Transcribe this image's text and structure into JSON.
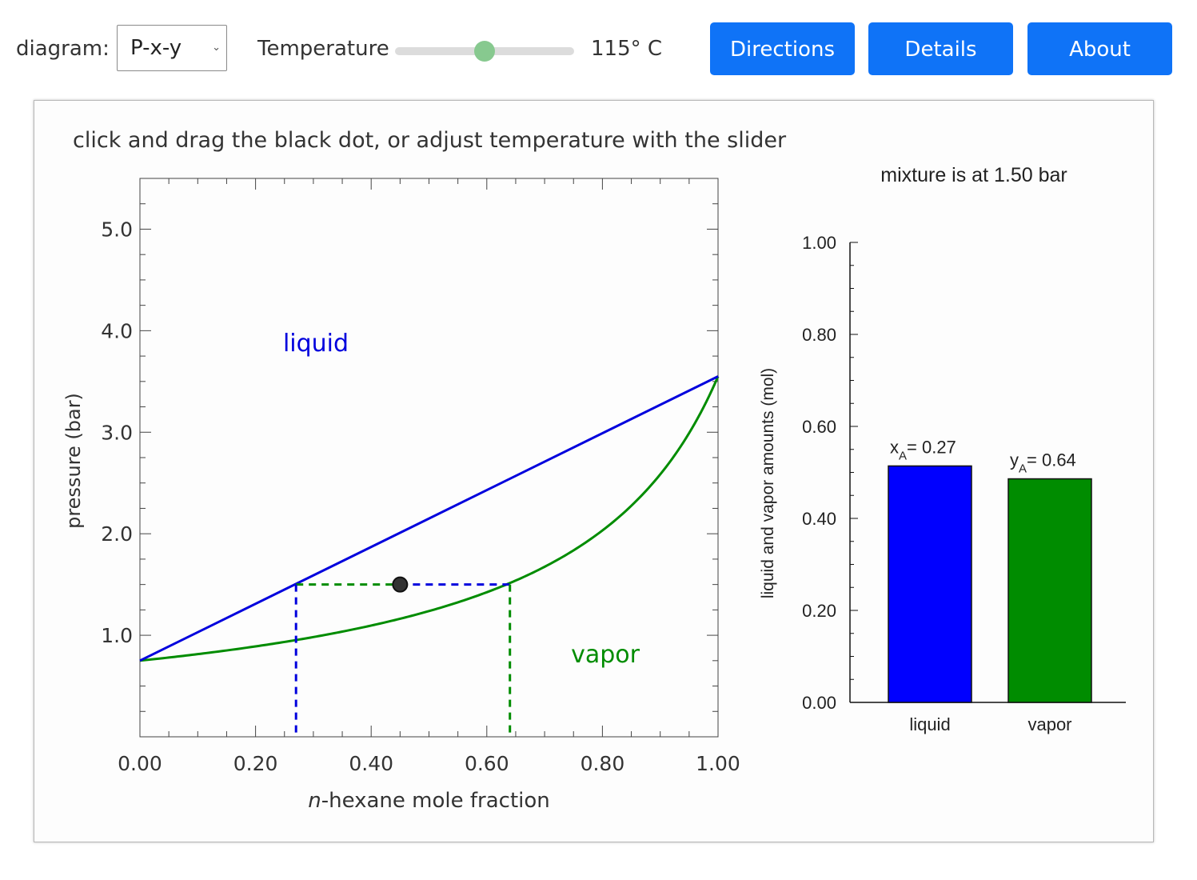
{
  "controls": {
    "diagram_label": "diagram:",
    "diagram_value": "P-x-y",
    "temperature_label": "Temperature",
    "temperature_value": "115° C",
    "temperature_slider_fraction": 0.5,
    "buttons": {
      "directions": "Directions",
      "details": "Details",
      "about": "About"
    }
  },
  "panel": {
    "instruction": "click and drag the black dot, or adjust temperature with the slider"
  },
  "chart_data": [
    {
      "type": "line",
      "xlabel_italic": "n",
      "xlabel": "-hexane mole fraction",
      "ylabel": "pressure (bar)",
      "xlim": [
        0,
        1
      ],
      "ylim": [
        0,
        5.5
      ],
      "x_ticks": [
        "0.00",
        "0.20",
        "0.40",
        "0.60",
        "0.80",
        "1.00"
      ],
      "y_ticks": [
        "1.0",
        "2.0",
        "3.0",
        "4.0",
        "5.0"
      ],
      "region_labels": {
        "liquid": "liquid",
        "vapor": "vapor"
      },
      "pure_pressures": {
        "x0": 0.75,
        "x1": 3.55
      },
      "state_point": {
        "x": 0.45,
        "p": 1.5
      },
      "tie_line": {
        "x_liquid": 0.27,
        "y_vapor": 0.64,
        "p": 1.5
      },
      "series": [
        {
          "name": "bubble",
          "color": "#0000dd"
        },
        {
          "name": "dew",
          "color": "#008c00"
        }
      ]
    },
    {
      "type": "bar",
      "title": "mixture is at 1.50 bar",
      "ylabel": "liquid and vapor amounts (mol)",
      "ylim": [
        0,
        1
      ],
      "y_ticks": [
        "0.00",
        "0.20",
        "0.40",
        "0.60",
        "0.80",
        "1.00"
      ],
      "categories": [
        "liquid",
        "vapor"
      ],
      "values": [
        0.514,
        0.486
      ],
      "colors": [
        "#0000ff",
        "#008c00"
      ],
      "bar_labels": [
        {
          "sym": "x",
          "sub": "A",
          "text": "= 0.27"
        },
        {
          "sym": "y",
          "sub": "A",
          "text": "= 0.64"
        }
      ]
    }
  ]
}
